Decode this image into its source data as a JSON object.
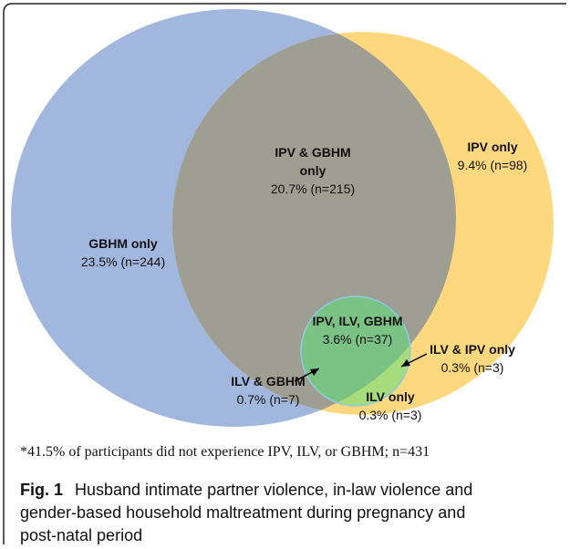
{
  "regions": [
    {
      "label": [
        "GBHM only"
      ],
      "value": "23.5% (n=244)"
    },
    {
      "label": [
        "IPV & GBHM",
        "only"
      ],
      "value": "20.7% (n=215)"
    },
    {
      "label": [
        "IPV only"
      ],
      "value": "9.4% (n=98)"
    },
    {
      "label": [
        "IPV, ILV, GBHM"
      ],
      "value": "3.6% (n=37)"
    },
    {
      "label": [
        "ILV & IPV only"
      ],
      "value": "0.3% (n=3)"
    },
    {
      "label": [
        "ILV & GBHM"
      ],
      "value": "0.7% (n=7)"
    },
    {
      "label": [
        "ILV only"
      ],
      "value": "0.3% (n=3)"
    }
  ],
  "footnote": "*41.5% of participants did not experience IPV, ILV, or GBHM; n=431",
  "caption": {
    "label": "Fig. 1",
    "lines": [
      "Husband intimate partner violence, in-law violence and",
      "gender-based household maltreatment during pregnancy and",
      "post-natal period"
    ]
  }
}
